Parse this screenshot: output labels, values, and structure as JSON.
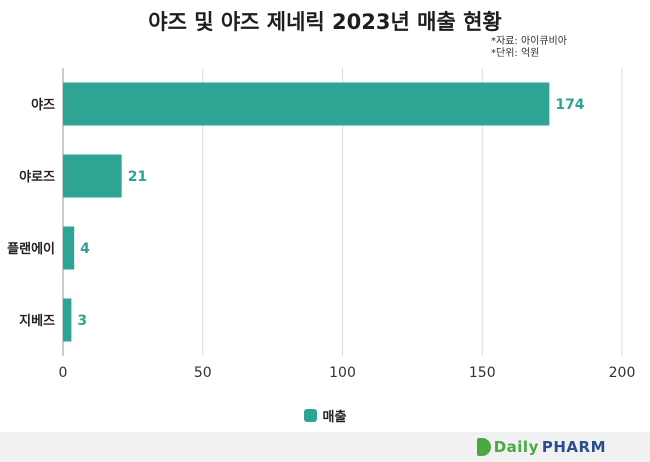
{
  "header": {
    "title": "야즈 및 야즈 제네릭 2023년 매출 현황",
    "source_lines": [
      "*자료: 아이큐비아",
      "*단위: 억원"
    ]
  },
  "colors": {
    "bar": "#2ea494",
    "label": "#2ea494",
    "grid": "#d9d9d9"
  },
  "legend": {
    "label": "매출"
  },
  "footer": {
    "brand_part1": "Daily",
    "brand_part2": "PHARM"
  },
  "chart_data": {
    "type": "bar",
    "orientation": "horizontal",
    "title": "야즈 및 야즈 제네릭 2023년 매출 현황",
    "categories": [
      "야즈",
      "야로즈",
      "플랜에이",
      "지베즈"
    ],
    "series": [
      {
        "name": "매출",
        "values": [
          174,
          21,
          4,
          3
        ]
      }
    ],
    "xlim": [
      0,
      200
    ],
    "xticks": [
      0,
      50,
      100,
      150,
      200
    ],
    "grid": "vertical",
    "legend_position": "bottom"
  }
}
